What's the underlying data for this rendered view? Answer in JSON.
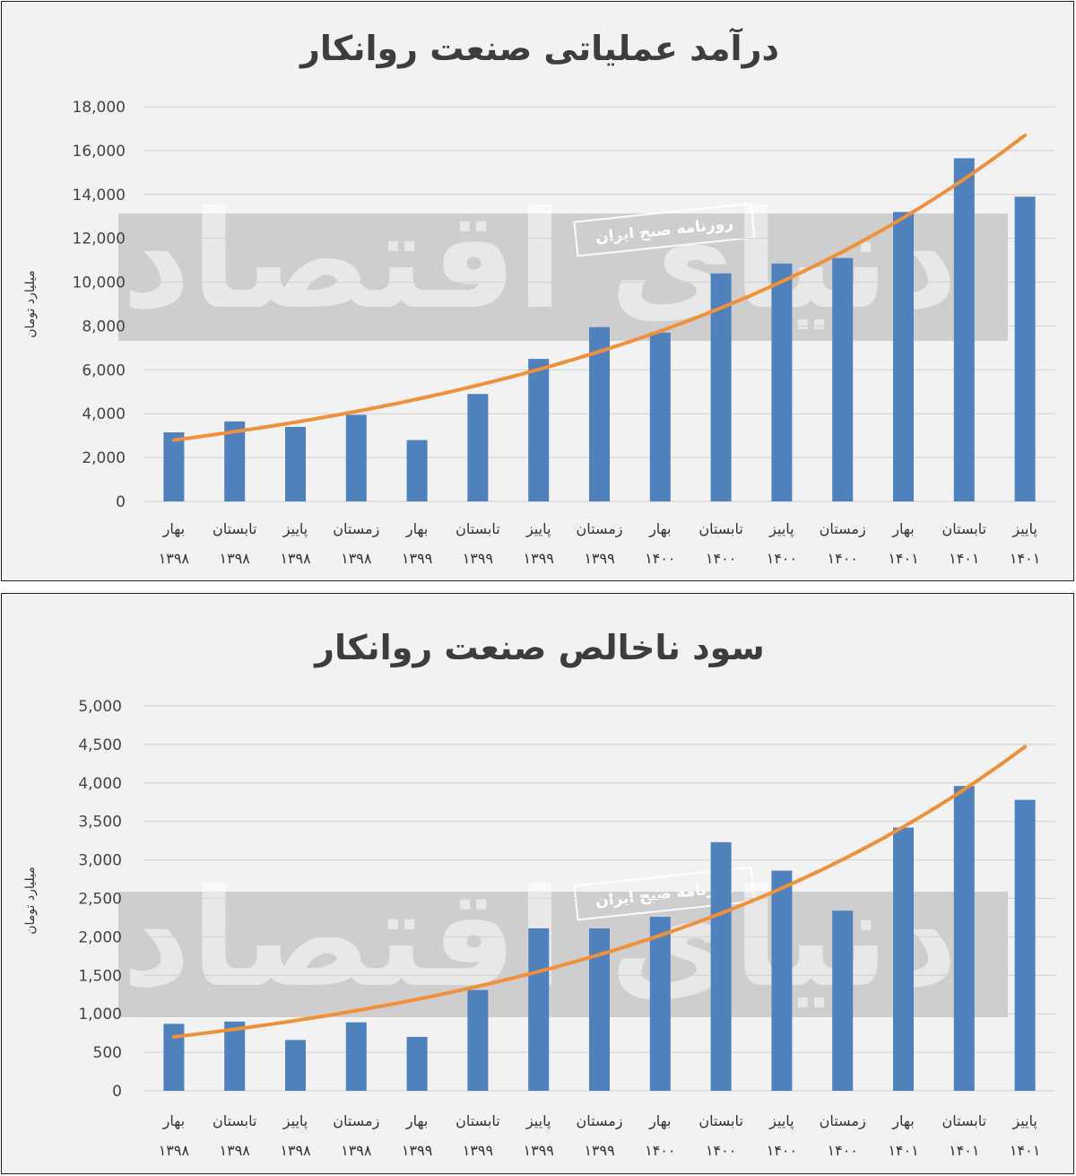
{
  "chart_data": [
    {
      "type": "bar",
      "title": "درآمد عملیاتی صنعت روانکار",
      "ylabel": "میلیارد تومان",
      "ylim": [
        0,
        18000
      ],
      "yticks": [
        "0",
        "2,000",
        "4,000",
        "6,000",
        "8,000",
        "10,000",
        "12,000",
        "14,000",
        "16,000",
        "18,000"
      ],
      "categories": [
        [
          "بهار",
          "۱۳۹۸"
        ],
        [
          "تابستان",
          "۱۳۹۸"
        ],
        [
          "پاییز",
          "۱۳۹۸"
        ],
        [
          "زمستان",
          "۱۳۹۸"
        ],
        [
          "بهار",
          "۱۳۹۹"
        ],
        [
          "تابستان",
          "۱۳۹۹"
        ],
        [
          "پاییز",
          "۱۳۹۹"
        ],
        [
          "زمستان",
          "۱۳۹۹"
        ],
        [
          "بهار",
          "۱۴۰۰"
        ],
        [
          "تابستان",
          "۱۴۰۰"
        ],
        [
          "پاییز",
          "۱۴۰۰"
        ],
        [
          "زمستان",
          "۱۴۰۰"
        ],
        [
          "بهار",
          "۱۴۰۱"
        ],
        [
          "تابستان",
          "۱۴۰۱"
        ],
        [
          "پاییز",
          "۱۴۰۱"
        ]
      ],
      "values": [
        3150,
        3650,
        3400,
        3950,
        2800,
        4900,
        6500,
        7950,
        7700,
        10400,
        10850,
        11100,
        13200,
        15650,
        13900
      ],
      "trendline": {
        "type": "exponential",
        "start": 2800,
        "end": 16700
      },
      "grid": true,
      "colors": {
        "bar": "#4f81bd",
        "trend": "#f0913a"
      }
    },
    {
      "type": "bar",
      "title": "سود ناخالص صنعت روانکار",
      "ylabel": "میلیارد تومان",
      "ylim": [
        0,
        5000
      ],
      "yticks": [
        "0",
        "500",
        "1,000",
        "1,500",
        "2,000",
        "2,500",
        "3,000",
        "3,500",
        "4,000",
        "4,500",
        "5,000"
      ],
      "categories": [
        [
          "بهار",
          "۱۳۹۸"
        ],
        [
          "تابستان",
          "۱۳۹۸"
        ],
        [
          "پاییز",
          "۱۳۹۸"
        ],
        [
          "زمستان",
          "۱۳۹۸"
        ],
        [
          "بهار",
          "۱۳۹۹"
        ],
        [
          "تابستان",
          "۱۳۹۹"
        ],
        [
          "پاییز",
          "۱۳۹۹"
        ],
        [
          "زمستان",
          "۱۳۹۹"
        ],
        [
          "بهار",
          "۱۴۰۰"
        ],
        [
          "تابستان",
          "۱۴۰۰"
        ],
        [
          "پاییز",
          "۱۴۰۰"
        ],
        [
          "زمستان",
          "۱۴۰۰"
        ],
        [
          "بهار",
          "۱۴۰۱"
        ],
        [
          "تابستان",
          "۱۴۰۱"
        ],
        [
          "پاییز",
          "۱۴۰۱"
        ]
      ],
      "values": [
        870,
        900,
        660,
        890,
        700,
        1310,
        2110,
        2110,
        2260,
        3230,
        2860,
        2340,
        3420,
        3960,
        3780
      ],
      "trendline": {
        "type": "exponential",
        "start": 700,
        "end": 4470
      },
      "grid": true,
      "colors": {
        "bar": "#4f81bd",
        "trend": "#f0913a"
      }
    }
  ],
  "watermark": {
    "logo": "دنیای اقتصاد",
    "tag": "روزنامه صبح ایران"
  }
}
